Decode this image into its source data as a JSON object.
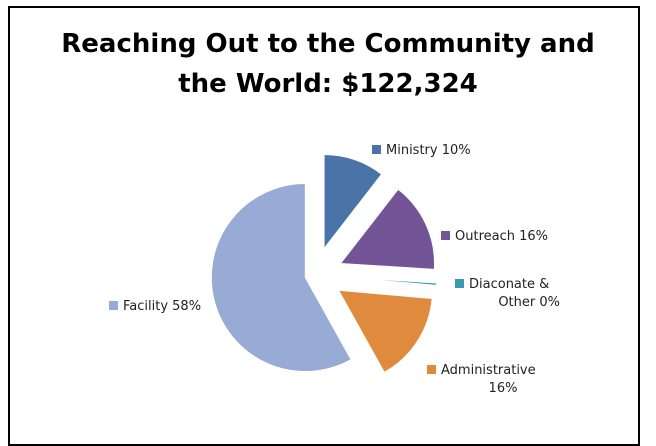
{
  "chart_data": {
    "type": "pie",
    "title_lines": [
      "Reaching Out to the Community and",
      "the World:  $122,324"
    ],
    "slices": [
      {
        "name": "Ministry",
        "label_lines": [
          "Ministry 10%"
        ],
        "value": 10.5,
        "color": "#4a74a8"
      },
      {
        "name": "Outreach",
        "label_lines": [
          "Outreach 16%"
        ],
        "value": 15.5,
        "color": "#735597"
      },
      {
        "name": "Diaconate & Other",
        "label_lines": [
          "Diaconate &",
          "Other 0%"
        ],
        "value": 0.4,
        "color": "#3a9ab3"
      },
      {
        "name": "Administrative",
        "label_lines": [
          "Administrative",
          "16%"
        ],
        "value": 15.5,
        "color": "#e08a3e"
      },
      {
        "name": "Facility",
        "label_lines": [
          "Facility 58%"
        ],
        "value": 58.1,
        "color": "#97abd4"
      }
    ],
    "legend": "labels-beside-slices",
    "exploded": true
  }
}
